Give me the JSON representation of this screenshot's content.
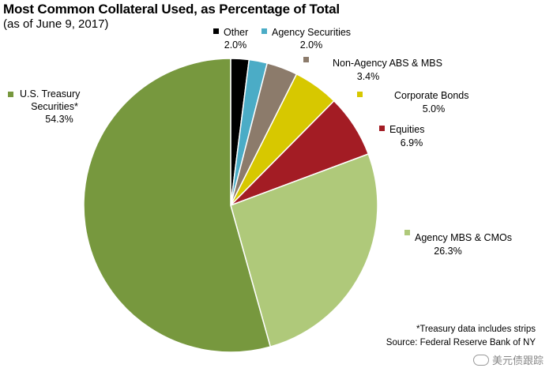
{
  "chart_data": {
    "type": "pie",
    "title": "Most Common Collateral Used, as Percentage of Total",
    "subtitle": "(as of June 9, 2017)",
    "slices": [
      {
        "label": "Other",
        "value": 2.0,
        "value_label": "2.0%",
        "color": "#000000"
      },
      {
        "label": "Agency Securities",
        "value": 2.0,
        "value_label": "2.0%",
        "color": "#4bacc6"
      },
      {
        "label": "Non-Agency ABS & MBS",
        "value": 3.4,
        "value_label": "3.4%",
        "color": "#8c7b6b"
      },
      {
        "label": "Corporate Bonds",
        "value": 5.0,
        "value_label": "5.0%",
        "color": "#d7c800"
      },
      {
        "label": "Equities",
        "value": 6.9,
        "value_label": "6.9%",
        "color": "#a31c24"
      },
      {
        "label": "Agency MBS & CMOs",
        "value": 26.3,
        "value_label": "26.3%",
        "color": "#afc97a"
      },
      {
        "label_lines": [
          "U.S. Treasury",
          "Securities*"
        ],
        "value": 54.3,
        "value_label": "54.3%",
        "color": "#77983e"
      }
    ]
  },
  "notes": {
    "treasury": "*Treasury data includes strips",
    "source": "Source: Federal Reserve Bank of NY"
  },
  "watermark": "美元债跟踪"
}
